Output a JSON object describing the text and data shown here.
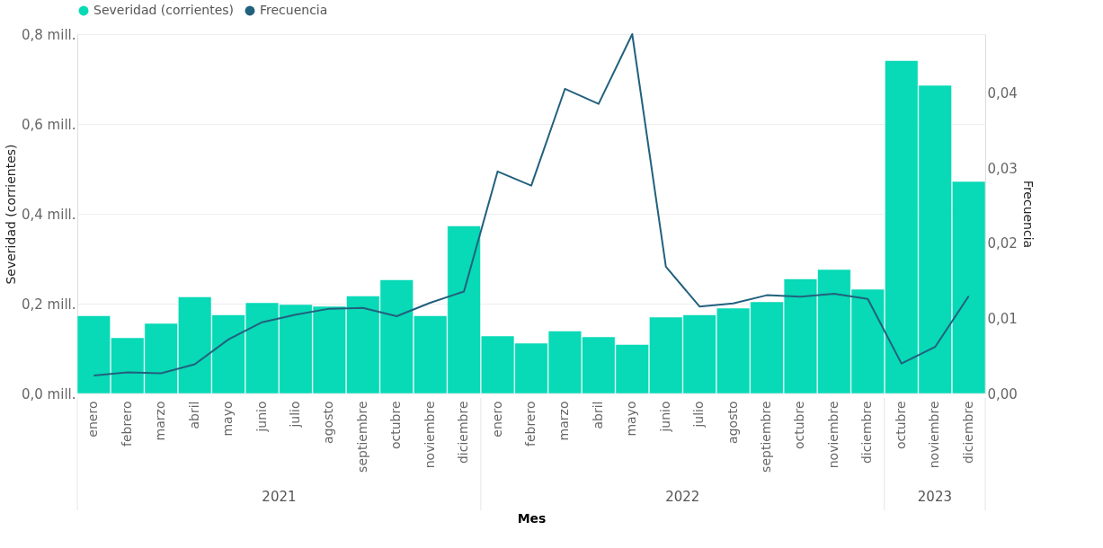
{
  "chart_data": {
    "type": "bar",
    "xlabel": "Mes",
    "ylabel": "Severidad (corrientes)",
    "y2label": "Frecuencia",
    "categories": [
      "enero",
      "febrero",
      "marzo",
      "abril",
      "mayo",
      "junio",
      "julio",
      "agosto",
      "septiembre",
      "octubre",
      "noviembre",
      "diciembre",
      "enero",
      "febrero",
      "marzo",
      "abril",
      "mayo",
      "junio",
      "julio",
      "agosto",
      "septiembre",
      "octubre",
      "noviembre",
      "diciembre",
      "octubre",
      "noviembre",
      "diciembre"
    ],
    "series": [
      {
        "name": "Severidad (corrientes)",
        "color": "#08d9b6",
        "values": [
          0.173,
          0.124,
          0.156,
          0.215,
          0.175,
          0.202,
          0.198,
          0.194,
          0.217,
          0.253,
          0.173,
          0.373,
          0.128,
          0.112,
          0.139,
          0.126,
          0.109,
          0.17,
          0.175,
          0.19,
          0.204,
          0.255,
          0.276,
          0.232,
          0.741,
          0.686,
          0.472
        ]
      },
      {
        "name": "Frecuencia",
        "type": "line",
        "axis": "y2",
        "color": "#22617e",
        "values": [
          0.0024,
          0.0028,
          0.0027,
          0.0039,
          0.0072,
          0.0095,
          0.0105,
          0.0113,
          0.0114,
          0.0103,
          0.0121,
          0.0136,
          0.0296,
          0.0277,
          0.0406,
          0.0386,
          0.0479,
          0.0169,
          0.0116,
          0.012,
          0.0131,
          0.0129,
          0.0133,
          0.0126,
          0.004,
          0.0062,
          0.013
        ]
      }
    ],
    "ylim": [
      0,
      0.8
    ],
    "yticks": [
      {
        "value": 0,
        "label": "0,0 mill."
      },
      {
        "value": 0.2,
        "label": "0,2 mill."
      },
      {
        "value": 0.4,
        "label": "0,4 mill."
      },
      {
        "value": 0.6,
        "label": "0,6 mill."
      },
      {
        "value": 0.8,
        "label": "0,8 mill."
      }
    ],
    "y2lim": [
      0,
      0.0479
    ],
    "y2ticks": [
      {
        "value": 0,
        "label": "0,00"
      },
      {
        "value": 0.01,
        "label": "0,01"
      },
      {
        "value": 0.02,
        "label": "0,02"
      },
      {
        "value": 0.03,
        "label": "0,03"
      },
      {
        "value": 0.04,
        "label": "0,04"
      }
    ],
    "annotations": [
      "2021",
      "2022",
      "2023"
    ],
    "grid": "y",
    "legend": "top left",
    "marker": "none"
  }
}
